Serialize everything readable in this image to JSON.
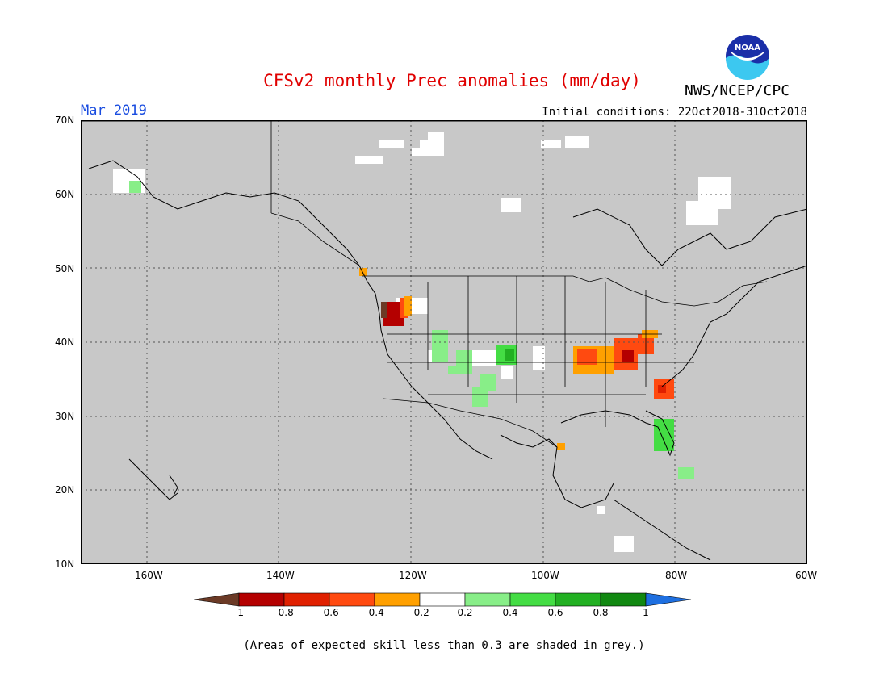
{
  "title": "CFSv2 monthly Prec anomalies (mm/day)",
  "month_label": "Mar 2019",
  "agency": "NWS/NCEP/CPC",
  "logo_text": "NOAA",
  "initial_conditions": "Initial conditions: 22Oct2018-31Oct2018",
  "footnote": "(Areas of expected skill less than 0.3 are shaded in grey.)",
  "latitude_labels": [
    "70N",
    "60N",
    "50N",
    "40N",
    "30N",
    "20N",
    "10N"
  ],
  "longitude_labels": [
    "160W",
    "140W",
    "120W",
    "100W",
    "80W",
    "60W"
  ],
  "colorbar": {
    "labels": [
      "-1",
      "-0.8",
      "-0.6",
      "-0.4",
      "-0.2",
      "0.2",
      "0.4",
      "0.6",
      "0.8",
      "1"
    ],
    "colors": [
      "#6b3a26",
      "#b40000",
      "#e02000",
      "#ff4a10",
      "#ffa000",
      "#ffffff",
      "#88ee88",
      "#44dd44",
      "#22b022",
      "#118811",
      "#1e6fe0"
    ]
  },
  "colors": {
    "skill_mask_grey": "#c8c8c8",
    "grid": "#555555",
    "title_red": "#e00000",
    "month_blue": "#1a4de0"
  }
}
